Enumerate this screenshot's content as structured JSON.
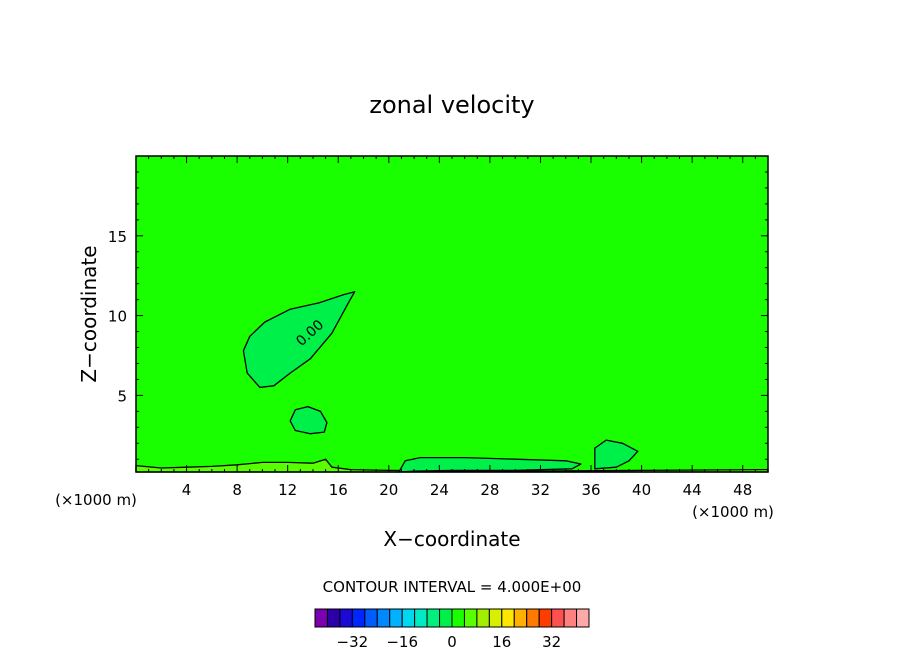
{
  "chart_data": {
    "type": "heatmap",
    "title": "zonal velocity",
    "xlabel": "X−coordinate",
    "ylabel": "Z−coordinate",
    "x_unit_left": "(×1000 m)",
    "x_unit_right": "(×1000 m)",
    "xlim": [
      0,
      50
    ],
    "ylim": [
      0.2,
      20
    ],
    "x_ticks": [
      4,
      8,
      12,
      16,
      20,
      24,
      28,
      32,
      36,
      40,
      44,
      48
    ],
    "y_ticks": [
      5,
      10,
      15
    ],
    "contour_interval_text": "CONTOUR INTERVAL = 4.000E+00",
    "contour_label": "0.00",
    "background_level": 0,
    "colorbar": {
      "levels": [
        -40,
        -36,
        -32,
        -28,
        -24,
        -20,
        -16,
        -12,
        -8,
        -4,
        0,
        4,
        8,
        12,
        16,
        20,
        24,
        28,
        32,
        36,
        40
      ],
      "colors": [
        "#7a00b0",
        "#2b00a8",
        "#1a0ad6",
        "#0026ff",
        "#005cff",
        "#0088ff",
        "#00b2ff",
        "#00d8f0",
        "#00eac4",
        "#00f080",
        "#00f04a",
        "#1aff00",
        "#58ff00",
        "#a0f000",
        "#d8f000",
        "#ffe800",
        "#ffb000",
        "#ff7a00",
        "#ff3c00",
        "#ff5050",
        "#ff8080",
        "#ffa8a8"
      ],
      "tick_labels": [
        -32,
        -16,
        0,
        16,
        32
      ]
    },
    "features": [
      {
        "name": "upper-negative-lobe",
        "level": -4,
        "points": [
          [
            17.3,
            11.5
          ],
          [
            16.4,
            11.3
          ],
          [
            14.5,
            10.8
          ],
          [
            12.2,
            10.4
          ],
          [
            10.2,
            9.6
          ],
          [
            9.0,
            8.7
          ],
          [
            8.5,
            7.8
          ],
          [
            8.8,
            6.4
          ],
          [
            9.8,
            5.5
          ],
          [
            10.9,
            5.6
          ],
          [
            12.2,
            6.4
          ],
          [
            13.8,
            7.3
          ],
          [
            15.5,
            8.9
          ],
          [
            16.8,
            10.8
          ]
        ]
      },
      {
        "name": "small-negative-cell",
        "level": -4,
        "points": [
          [
            12.6,
            4.1
          ],
          [
            13.6,
            4.3
          ],
          [
            14.6,
            4.0
          ],
          [
            15.1,
            3.3
          ],
          [
            14.9,
            2.7
          ],
          [
            13.8,
            2.6
          ],
          [
            12.6,
            2.8
          ],
          [
            12.2,
            3.4
          ]
        ]
      },
      {
        "name": "surface-positive-band",
        "level": 4,
        "points": [
          [
            0.0,
            0.2
          ],
          [
            0.0,
            0.6
          ],
          [
            2.0,
            0.45
          ],
          [
            4.0,
            0.5
          ],
          [
            6.0,
            0.55
          ],
          [
            8.0,
            0.65
          ],
          [
            10.0,
            0.8
          ],
          [
            12.0,
            0.8
          ],
          [
            14.0,
            0.75
          ],
          [
            15.0,
            1.0
          ],
          [
            15.5,
            0.5
          ],
          [
            17.0,
            0.35
          ],
          [
            20.0,
            0.3
          ],
          [
            30.0,
            0.25
          ],
          [
            40.0,
            0.3
          ],
          [
            50.0,
            0.35
          ],
          [
            50.0,
            0.2
          ]
        ]
      },
      {
        "name": "surface-negative-band",
        "level": -4,
        "points": [
          [
            20.8,
            0.2
          ],
          [
            21.3,
            0.9
          ],
          [
            22.5,
            1.1
          ],
          [
            26.0,
            1.1
          ],
          [
            30.0,
            1.0
          ],
          [
            34.0,
            0.9
          ],
          [
            35.2,
            0.7
          ],
          [
            34.5,
            0.4
          ],
          [
            30.0,
            0.3
          ],
          [
            25.0,
            0.3
          ],
          [
            22.0,
            0.25
          ]
        ]
      },
      {
        "name": "right-negative-cell",
        "level": -4,
        "points": [
          [
            36.3,
            0.4
          ],
          [
            36.3,
            1.7
          ],
          [
            37.2,
            2.2
          ],
          [
            38.5,
            2.0
          ],
          [
            39.7,
            1.5
          ],
          [
            39.0,
            0.9
          ],
          [
            38.0,
            0.5
          ]
        ]
      }
    ]
  }
}
